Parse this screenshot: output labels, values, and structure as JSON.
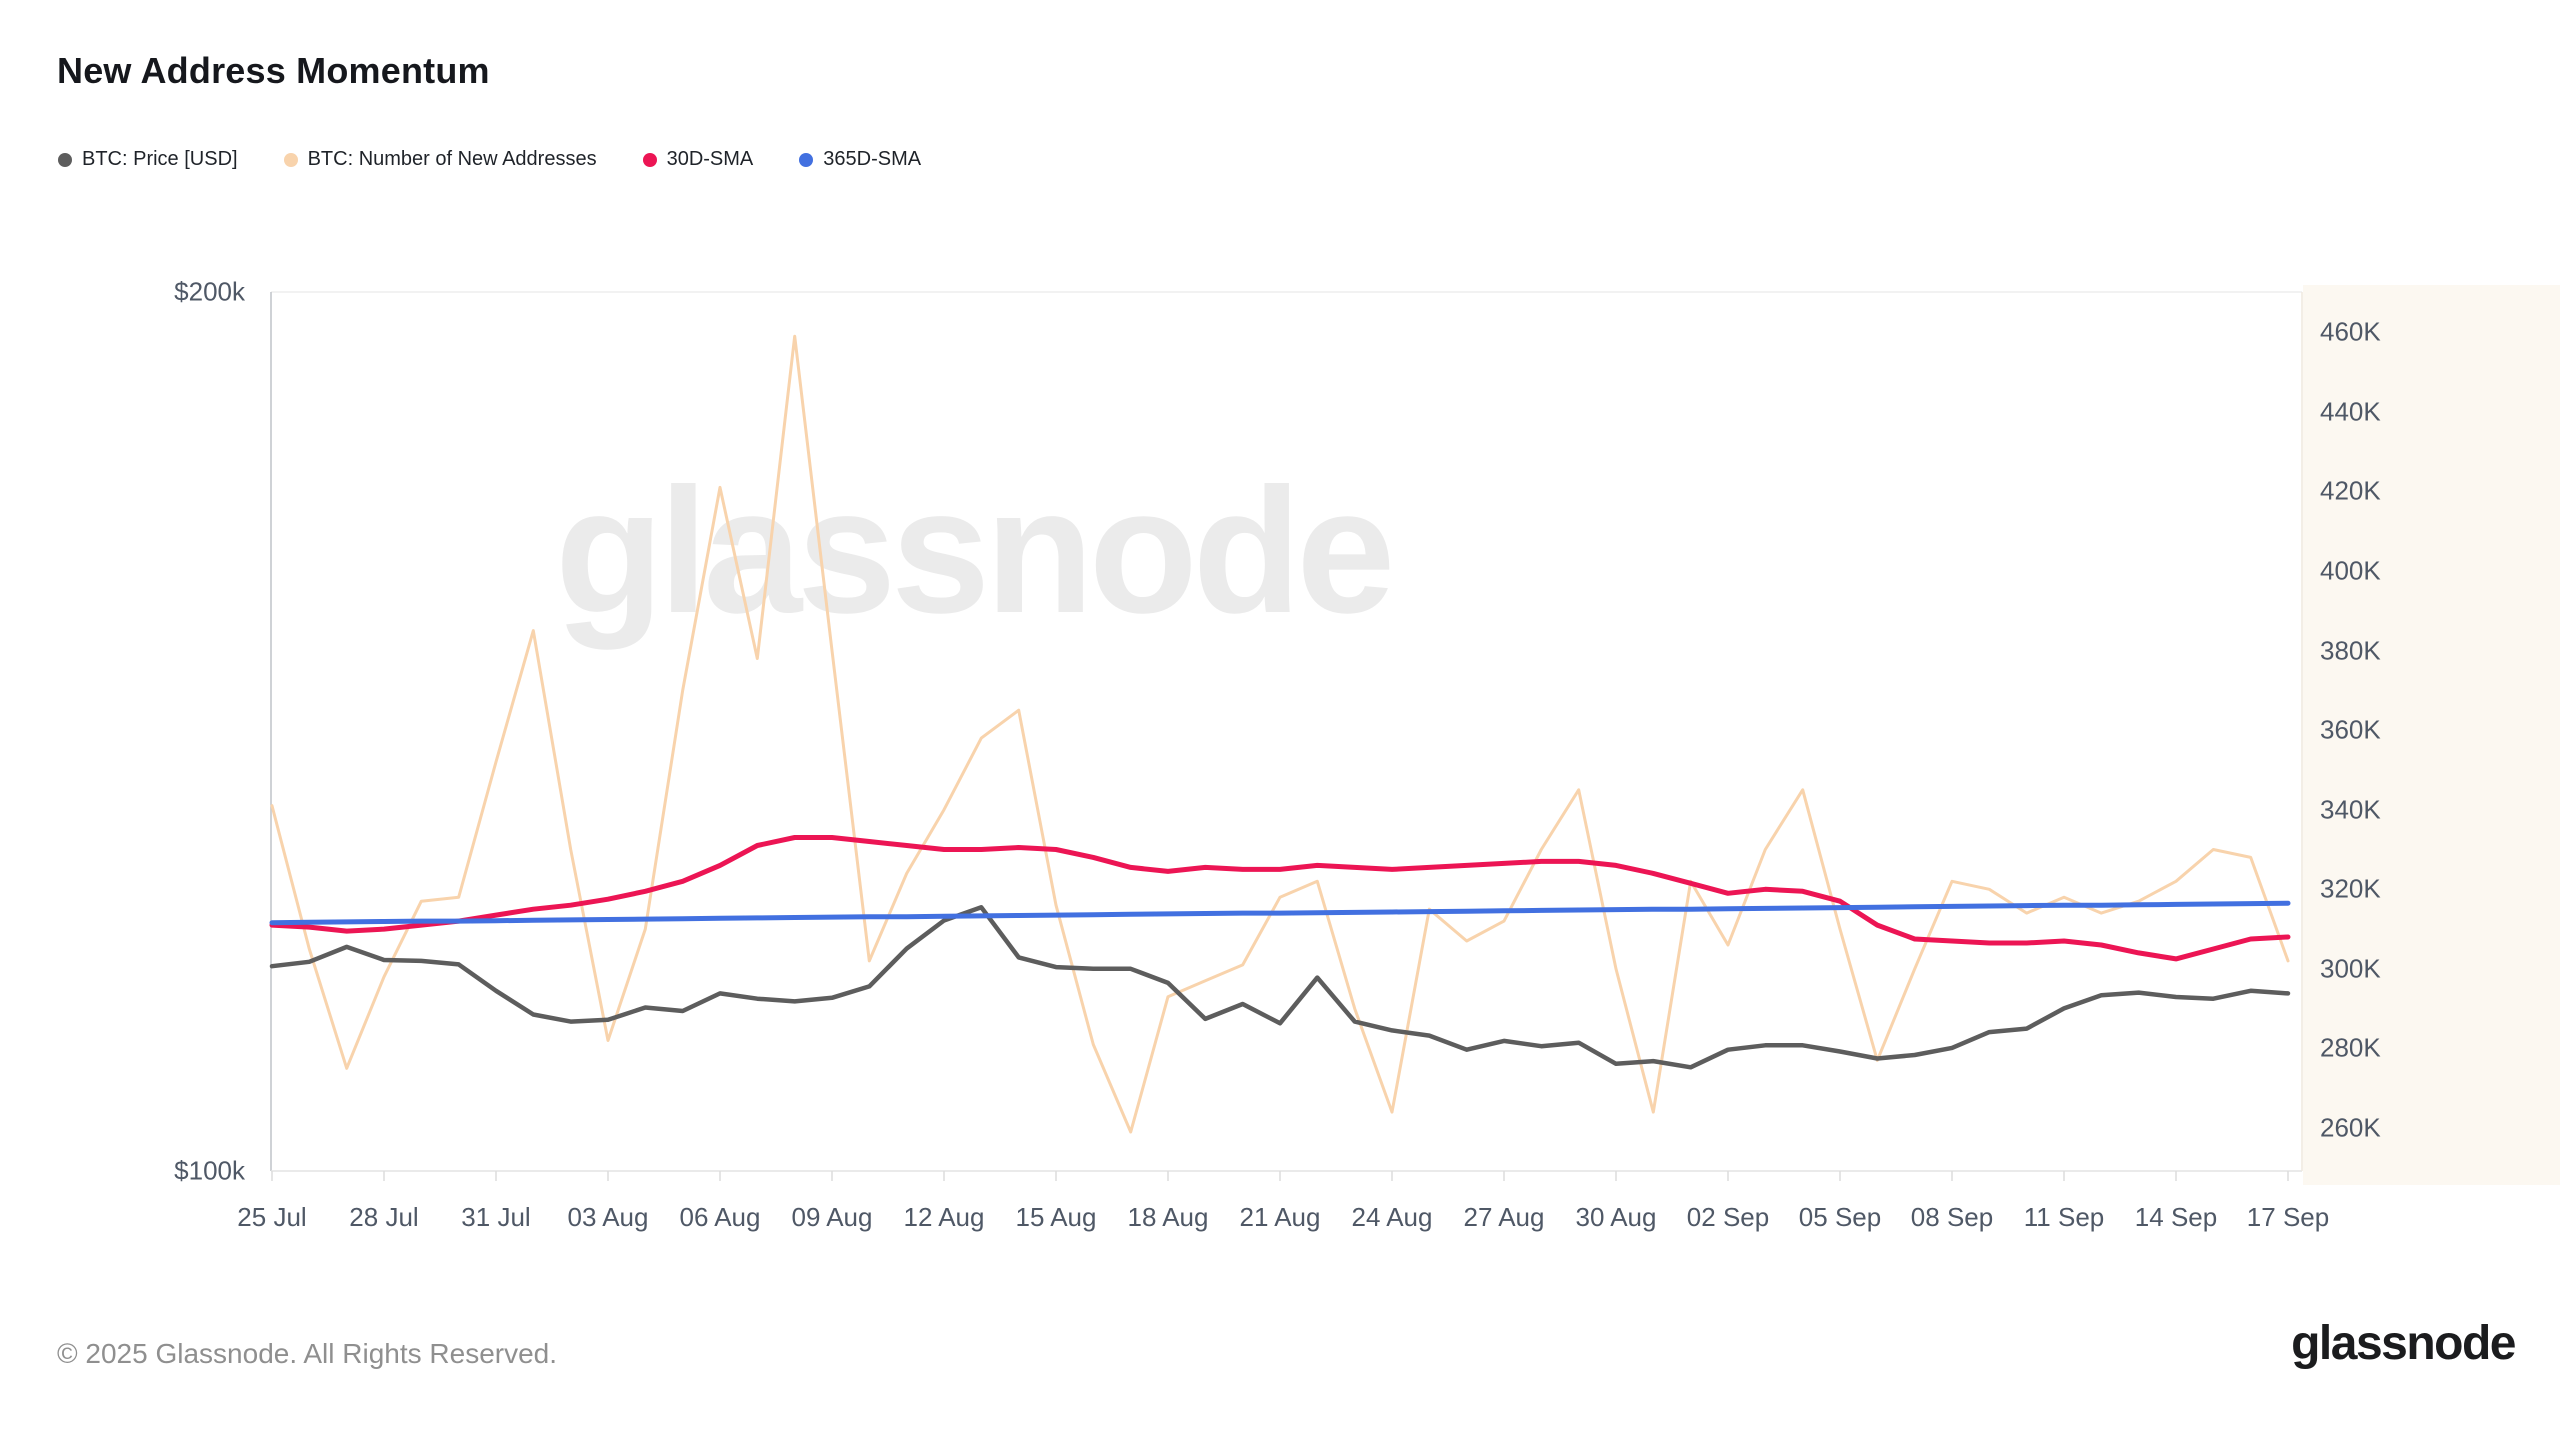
{
  "title": "New Address Momentum",
  "watermark": "glassnode",
  "footer": {
    "copyright": "© 2025 Glassnode. All Rights Reserved.",
    "logo_text": "glassnode"
  },
  "legend": {
    "items": [
      {
        "label": "BTC: Price [USD]",
        "color": "#5d5d5d"
      },
      {
        "label": "BTC: Number of New Addresses",
        "color": "#f8d3ac"
      },
      {
        "label": "30D-SMA",
        "color": "#ec1554"
      },
      {
        "label": "365D-SMA",
        "color": "#4270e0"
      }
    ]
  },
  "chart_data": {
    "type": "line",
    "title": "New Address Momentum",
    "grid": false,
    "legend_position": "top-left",
    "x": [
      "25 Jul",
      "26 Jul",
      "27 Jul",
      "28 Jul",
      "29 Jul",
      "30 Jul",
      "31 Jul",
      "01 Aug",
      "02 Aug",
      "03 Aug",
      "04 Aug",
      "05 Aug",
      "06 Aug",
      "07 Aug",
      "08 Aug",
      "09 Aug",
      "10 Aug",
      "11 Aug",
      "12 Aug",
      "13 Aug",
      "14 Aug",
      "15 Aug",
      "16 Aug",
      "17 Aug",
      "18 Aug",
      "19 Aug",
      "20 Aug",
      "21 Aug",
      "22 Aug",
      "23 Aug",
      "24 Aug",
      "25 Aug",
      "26 Aug",
      "27 Aug",
      "28 Aug",
      "29 Aug",
      "30 Aug",
      "31 Aug",
      "01 Sep",
      "02 Sep",
      "03 Sep",
      "04 Sep",
      "05 Sep",
      "06 Sep",
      "07 Sep",
      "08 Sep",
      "09 Sep",
      "10 Sep",
      "11 Sep",
      "12 Sep",
      "13 Sep",
      "14 Sep",
      "15 Sep",
      "16 Sep",
      "17 Sep"
    ],
    "x_tick_labels": [
      "25 Jul",
      "28 Jul",
      "31 Jul",
      "03 Aug",
      "06 Aug",
      "09 Aug",
      "12 Aug",
      "15 Aug",
      "18 Aug",
      "21 Aug",
      "24 Aug",
      "27 Aug",
      "30 Aug",
      "02 Sep",
      "05 Sep",
      "08 Sep",
      "11 Sep",
      "14 Sep",
      "17 Sep"
    ],
    "x_tick_step": 3,
    "left_axis": {
      "title": "BTC price, USD thousands",
      "range": [
        100,
        200
      ],
      "labels": [
        {
          "text": "$200k",
          "value": 200
        },
        {
          "text": "$100k",
          "value": 100
        }
      ]
    },
    "right_axis": {
      "title": "New addresses, thousands",
      "range": [
        249.2,
        470.1
      ],
      "tick_values": [
        460,
        440,
        420,
        400,
        380,
        360,
        340,
        320,
        300,
        280,
        260
      ],
      "tick_suffix": "K"
    },
    "series": [
      {
        "name": "BTC: Number of New Addresses",
        "axis": "right",
        "color": "#f8d3ac",
        "unit": "K addresses",
        "values": [
          341,
          305,
          275,
          298,
          317,
          318,
          352,
          385,
          330,
          282,
          310,
          370,
          421,
          378,
          459,
          380,
          302,
          324,
          340,
          358,
          365,
          316,
          281,
          259,
          293,
          297,
          301,
          318,
          322,
          290,
          264,
          315,
          307,
          312,
          330,
          345,
          300,
          264,
          322,
          306,
          330,
          345,
          310,
          277,
          300,
          322,
          320,
          314,
          318,
          314,
          317,
          322,
          330,
          328,
          302
        ]
      },
      {
        "name": "BTC: Price [USD]",
        "axis": "left",
        "color": "#5d5d5d",
        "unit": "$k",
        "values": [
          123.3,
          123.8,
          125.5,
          124.0,
          123.9,
          123.5,
          120.5,
          117.8,
          117.0,
          117.2,
          118.6,
          118.2,
          120.2,
          119.6,
          119.3,
          119.7,
          121.0,
          125.3,
          128.5,
          130.0,
          124.3,
          123.2,
          123.0,
          123.0,
          121.4,
          117.3,
          119.0,
          116.8,
          122.0,
          117.0,
          116.0,
          115.4,
          113.8,
          114.8,
          114.2,
          114.6,
          112.2,
          112.5,
          111.8,
          113.8,
          114.3,
          114.3,
          113.6,
          112.8,
          113.2,
          114.0,
          115.8,
          116.2,
          118.5,
          120.0,
          120.3,
          119.8,
          119.6,
          120.5,
          120.2
        ]
      },
      {
        "name": "30D-SMA",
        "axis": "right",
        "color": "#ec1554",
        "unit": "K addresses",
        "values": [
          311,
          310.5,
          309.5,
          310,
          311,
          312,
          313.5,
          315,
          316,
          317.5,
          319.5,
          322,
          326,
          331,
          333,
          333,
          332,
          331,
          330,
          330,
          330.5,
          330,
          328,
          325.5,
          324.5,
          325.5,
          325,
          325,
          326,
          325.5,
          325,
          325.5,
          326,
          326.5,
          327,
          327,
          326,
          324,
          321.5,
          319,
          320,
          319.5,
          317,
          311,
          307.5,
          307,
          306.5,
          306.5,
          307,
          306,
          304,
          302.5,
          305,
          307.5,
          308
        ]
      },
      {
        "name": "365D-SMA",
        "axis": "right",
        "color": "#4270e0",
        "unit": "K addresses",
        "values": [
          311.6,
          311.7,
          311.8,
          311.9,
          312.0,
          312.0,
          312.1,
          312.2,
          312.3,
          312.4,
          312.5,
          312.6,
          312.7,
          312.8,
          312.9,
          313.0,
          313.1,
          313.1,
          313.2,
          313.3,
          313.4,
          313.5,
          313.6,
          313.7,
          313.8,
          313.9,
          314.0,
          314.0,
          314.1,
          314.2,
          314.3,
          314.4,
          314.5,
          314.6,
          314.7,
          314.8,
          314.9,
          315.0,
          315.0,
          315.1,
          315.2,
          315.3,
          315.4,
          315.5,
          315.6,
          315.7,
          315.8,
          315.9,
          316.0,
          316.0,
          316.1,
          316.2,
          316.3,
          316.4,
          316.5
        ]
      }
    ]
  }
}
